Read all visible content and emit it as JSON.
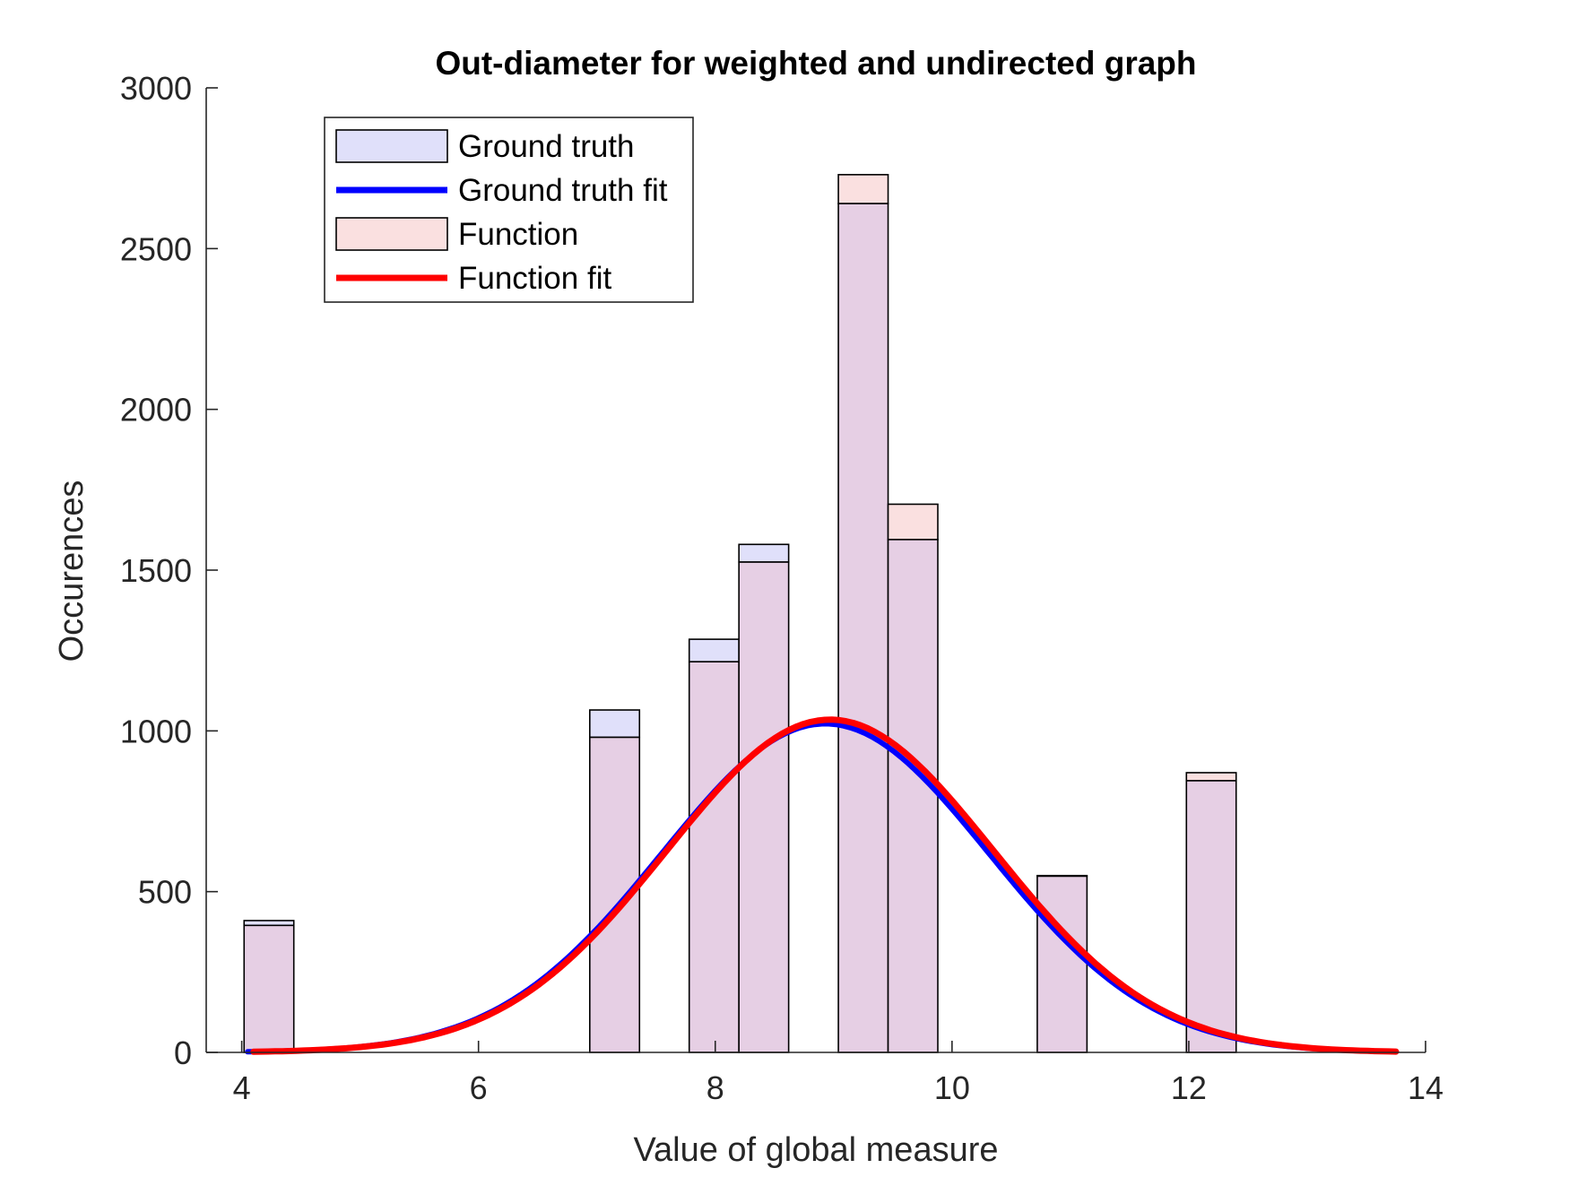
{
  "chart_data": {
    "type": "bar",
    "title": "Out-diameter for weighted and undirected graph",
    "xlabel": "Value of global measure",
    "ylabel": "Occurences",
    "xlim": [
      3.7,
      14
    ],
    "ylim": [
      0,
      3000
    ],
    "xticks": [
      4,
      6,
      8,
      10,
      12,
      14
    ],
    "yticks": [
      0,
      500,
      1000,
      1500,
      2000,
      2500,
      3000
    ],
    "xtick_labels": [
      "4",
      "6",
      "8",
      "10",
      "12",
      "14"
    ],
    "ytick_labels": [
      "0",
      "500",
      "1000",
      "1500",
      "2000",
      "2500",
      "3000"
    ],
    "grid": false,
    "legend_position": "top-left",
    "bins": [
      {
        "x0": 4.02,
        "x1": 4.44
      },
      {
        "x0": 6.94,
        "x1": 7.36
      },
      {
        "x0": 7.78,
        "x1": 8.2
      },
      {
        "x0": 8.2,
        "x1": 8.62
      },
      {
        "x0": 9.04,
        "x1": 9.46
      },
      {
        "x0": 9.46,
        "x1": 9.88
      },
      {
        "x0": 10.72,
        "x1": 11.14
      },
      {
        "x0": 11.98,
        "x1": 12.4
      }
    ],
    "series": [
      {
        "name": "Ground truth",
        "kind": "histogram",
        "color": "#e0e0fa",
        "values": [
          410,
          1065,
          1285,
          1580,
          2640,
          1595,
          550,
          845
        ]
      },
      {
        "name": "Function",
        "kind": "histogram",
        "color": "#fae0e0",
        "values": [
          395,
          980,
          1215,
          1525,
          2730,
          1705,
          548,
          870
        ]
      },
      {
        "name": "Ground truth fit",
        "kind": "line",
        "color": "#0000ff",
        "mean": 8.93,
        "sigma": 1.38,
        "peak": 1022,
        "x_range": [
          4.05,
          13.75
        ]
      },
      {
        "name": "Function fit",
        "kind": "line",
        "color": "#ff0000",
        "mean": 8.97,
        "sigma": 1.38,
        "peak": 1035,
        "x_range": [
          4.1,
          13.75
        ]
      }
    ],
    "overlap_color": "#e6cfe4"
  }
}
